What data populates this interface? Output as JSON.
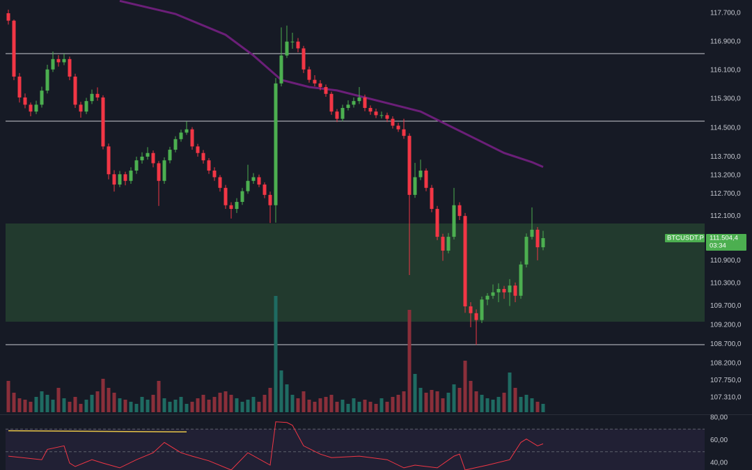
{
  "chart_data": {
    "type": "candlestick",
    "symbol": "BTCUSDT.P",
    "countdown": "03:34",
    "last_price": {
      "value": 111504.4,
      "label": "111.504,4"
    },
    "log_scale": true,
    "ylim": [
      106880,
      118075
    ],
    "yticks": [
      {
        "value": 117700,
        "label": "117.700,0"
      },
      {
        "value": 116900,
        "label": "116.900,0"
      },
      {
        "value": 116100,
        "label": "116.100,0"
      },
      {
        "value": 115300,
        "label": "115.300,0"
      },
      {
        "value": 114500,
        "label": "114.500,0"
      },
      {
        "value": 113700,
        "label": "113.700,0"
      },
      {
        "value": 113200,
        "label": "113.200,0"
      },
      {
        "value": 112700,
        "label": "112.700,0"
      },
      {
        "value": 112100,
        "label": "112.100,0"
      },
      {
        "value": 110900,
        "label": "110.900,0"
      },
      {
        "value": 110300,
        "label": "110.300,0"
      },
      {
        "value": 109700,
        "label": "109.700,0"
      },
      {
        "value": 109200,
        "label": "109.200,0"
      },
      {
        "value": 108700,
        "label": "108.700,0"
      },
      {
        "value": 108200,
        "label": "108.200,0"
      },
      {
        "value": 107750,
        "label": "107.750,0"
      },
      {
        "value": 107310,
        "label": "107.310,0"
      }
    ],
    "up_color": "#4caf50",
    "down_color": "#f23645",
    "candles": [
      [
        117700,
        117800,
        117380,
        117490
      ],
      [
        117490,
        117520,
        115820,
        115920
      ],
      [
        115920,
        116020,
        115200,
        115340
      ],
      [
        115340,
        115450,
        115040,
        115140
      ],
      [
        115140,
        115200,
        114820,
        114950
      ],
      [
        114950,
        115250,
        114880,
        115140
      ],
      [
        115140,
        115640,
        115060,
        115530
      ],
      [
        115530,
        116250,
        115450,
        116120
      ],
      [
        116120,
        116620,
        116050,
        116410
      ],
      [
        116410,
        116520,
        116200,
        116320
      ],
      [
        116320,
        116560,
        116240,
        116410
      ],
      [
        116410,
        116480,
        115820,
        115920
      ],
      [
        115920,
        116000,
        115050,
        115140
      ],
      [
        115140,
        115220,
        114780,
        114950
      ],
      [
        114950,
        115330,
        114880,
        115240
      ],
      [
        115240,
        115560,
        115160,
        115440
      ],
      [
        115440,
        115620,
        115250,
        115340
      ],
      [
        115340,
        115400,
        113910,
        113990
      ],
      [
        113990,
        114070,
        113090,
        113230
      ],
      [
        113230,
        113340,
        112760,
        112950
      ],
      [
        112950,
        113320,
        112880,
        113230
      ],
      [
        113230,
        113300,
        112930,
        113050
      ],
      [
        113050,
        113420,
        112970,
        113330
      ],
      [
        113330,
        113710,
        113240,
        113610
      ],
      [
        113610,
        113830,
        113520,
        113710
      ],
      [
        113710,
        113970,
        113630,
        113810
      ],
      [
        113810,
        113880,
        113420,
        113530
      ],
      [
        113530,
        113590,
        112370,
        113050
      ],
      [
        113050,
        113690,
        112970,
        113610
      ],
      [
        113610,
        113980,
        113530,
        113900
      ],
      [
        113900,
        114270,
        113830,
        114190
      ],
      [
        114190,
        114450,
        114120,
        114370
      ],
      [
        114370,
        114680,
        114310,
        114460
      ],
      [
        114460,
        114520,
        113900,
        113990
      ],
      [
        113990,
        114060,
        113710,
        113810
      ],
      [
        113810,
        113890,
        113520,
        113610
      ],
      [
        113610,
        113670,
        113240,
        113330
      ],
      [
        113330,
        113420,
        113050,
        113150
      ],
      [
        113150,
        113210,
        112760,
        112860
      ],
      [
        112860,
        112940,
        112290,
        112390
      ],
      [
        112390,
        112470,
        112030,
        112290
      ],
      [
        112290,
        112580,
        112180,
        112480
      ],
      [
        112480,
        112860,
        112400,
        112770
      ],
      [
        112770,
        113490,
        112700,
        113050
      ],
      [
        113050,
        113260,
        112970,
        113150
      ],
      [
        113150,
        113220,
        112880,
        112950
      ],
      [
        112950,
        113010,
        112580,
        112670
      ],
      [
        112670,
        112760,
        111910,
        112390
      ],
      [
        112390,
        115880,
        111920,
        115730
      ],
      [
        115730,
        117300,
        115650,
        116510
      ],
      [
        116510,
        117350,
        116440,
        116900
      ],
      [
        116900,
        117150,
        116700,
        116900
      ],
      [
        116900,
        117000,
        116600,
        116710
      ],
      [
        116710,
        116780,
        116020,
        116120
      ],
      [
        116120,
        116200,
        115750,
        115830
      ],
      [
        115830,
        115960,
        115650,
        115730
      ],
      [
        115730,
        115820,
        115540,
        115630
      ],
      [
        115630,
        115700,
        115360,
        115440
      ],
      [
        115440,
        115500,
        114860,
        114950
      ],
      [
        114950,
        115020,
        114660,
        114750
      ],
      [
        114750,
        115140,
        114680,
        115050
      ],
      [
        115050,
        115260,
        114980,
        115140
      ],
      [
        115140,
        115340,
        115060,
        115240
      ],
      [
        115240,
        115630,
        115160,
        115340
      ],
      [
        115340,
        115420,
        114960,
        115050
      ],
      [
        115050,
        115120,
        114860,
        114950
      ],
      [
        114950,
        115030,
        114770,
        114850
      ],
      [
        114850,
        114950,
        114760,
        114850
      ],
      [
        114850,
        114920,
        114660,
        114750
      ],
      [
        114750,
        114820,
        114480,
        114560
      ],
      [
        114560,
        114640,
        114390,
        114460
      ],
      [
        114460,
        114750,
        114200,
        114280
      ],
      [
        114280,
        114350,
        110520,
        112670
      ],
      [
        112670,
        113540,
        112590,
        113150
      ],
      [
        113150,
        113630,
        113070,
        113330
      ],
      [
        113330,
        113390,
        112770,
        112860
      ],
      [
        112860,
        112940,
        112200,
        112290
      ],
      [
        112290,
        112370,
        111450,
        111540
      ],
      [
        111540,
        111620,
        110900,
        111170
      ],
      [
        111170,
        111640,
        111100,
        111540
      ],
      [
        111540,
        112860,
        111470,
        112390
      ],
      [
        112390,
        112470,
        111990,
        112100
      ],
      [
        112100,
        112180,
        109520,
        109690
      ],
      [
        109690,
        109800,
        109140,
        109510
      ],
      [
        109510,
        109610,
        108680,
        109330
      ],
      [
        109330,
        109950,
        109250,
        109870
      ],
      [
        109870,
        110040,
        109720,
        109970
      ],
      [
        109970,
        110270,
        109890,
        110060
      ],
      [
        110060,
        110300,
        109800,
        110150
      ],
      [
        110150,
        110230,
        109890,
        110060
      ],
      [
        110060,
        110410,
        109700,
        110240
      ],
      [
        110240,
        110320,
        109800,
        109970
      ],
      [
        109970,
        110880,
        109890,
        110800
      ],
      [
        110800,
        111630,
        110720,
        111540
      ],
      [
        111540,
        112330,
        111470,
        111730
      ],
      [
        111730,
        111800,
        110910,
        111260
      ],
      [
        111260,
        111700,
        111180,
        111504.4
      ]
    ],
    "volume": [
      45,
      28,
      20,
      18,
      15,
      22,
      30,
      25,
      18,
      35,
      20,
      15,
      22,
      12,
      18,
      25,
      30,
      48,
      35,
      28,
      20,
      18,
      15,
      12,
      22,
      18,
      25,
      45,
      20,
      15,
      18,
      22,
      12,
      15,
      20,
      25,
      18,
      22,
      28,
      30,
      25,
      20,
      15,
      18,
      22,
      15,
      25,
      35,
      167,
      60,
      40,
      25,
      20,
      30,
      18,
      15,
      20,
      22,
      25,
      15,
      18,
      12,
      20,
      15,
      18,
      15,
      12,
      20,
      15,
      22,
      25,
      30,
      147,
      55,
      35,
      28,
      32,
      30,
      20,
      28,
      40,
      35,
      74,
      45,
      30,
      25,
      20,
      18,
      22,
      28,
      57,
      35,
      22,
      25,
      20,
      15,
      12
    ],
    "volume_up_color": "#1f6b62",
    "volume_down_color": "#8a2f3a",
    "moving_average": {
      "color": "#6b1f78",
      "x": [
        20,
        30,
        39,
        44,
        49,
        54,
        59,
        64,
        69,
        74,
        79,
        84,
        89,
        94,
        96
      ],
      "values": [
        118050,
        117680,
        117090,
        116510,
        115830,
        115630,
        115535,
        115340,
        115145,
        114950,
        114570,
        114190,
        113810,
        113560,
        113430
      ]
    },
    "hlines": [
      116563,
      114685,
      108685
    ],
    "hline_color": "#c9ccd4",
    "zone": [
      109287,
      111897
    ],
    "zone_color": "#4caf50",
    "rsi": {
      "ylim": [
        33.9,
        82.4
      ],
      "yticks": [
        {
          "value": 80,
          "label": "80,00"
        },
        {
          "value": 60,
          "label": "60,00"
        },
        {
          "value": 40,
          "label": "40,00"
        }
      ],
      "levels": [
        70,
        50
      ],
      "color": "#f23645",
      "band_color": "#2a2440",
      "x": [
        0,
        6,
        7,
        10,
        11,
        12,
        15,
        17,
        20,
        23,
        26,
        28,
        31,
        33,
        36,
        40,
        43,
        47,
        48,
        50,
        51,
        53,
        56,
        58,
        63,
        68,
        71,
        73,
        77,
        80,
        81,
        82,
        86,
        90,
        92,
        93,
        95,
        96
      ],
      "values": [
        46.1,
        43.0,
        52.1,
        55.2,
        40,
        37,
        43.0,
        40,
        35.8,
        43.0,
        49.1,
        58.2,
        49.1,
        46.1,
        42,
        33.9,
        49.1,
        38.2,
        76.4,
        75.8,
        73.3,
        55.2,
        47.9,
        44.8,
        46.1,
        43.0,
        35.8,
        38.2,
        35.8,
        46.1,
        47.9,
        33.9,
        38.2,
        43.0,
        58.2,
        61.2,
        55.2,
        57.0
      ],
      "signal": {
        "color": "#e8c547",
        "x": [
          0,
          32
        ],
        "values": [
          68.5,
          67.5
        ]
      }
    }
  }
}
